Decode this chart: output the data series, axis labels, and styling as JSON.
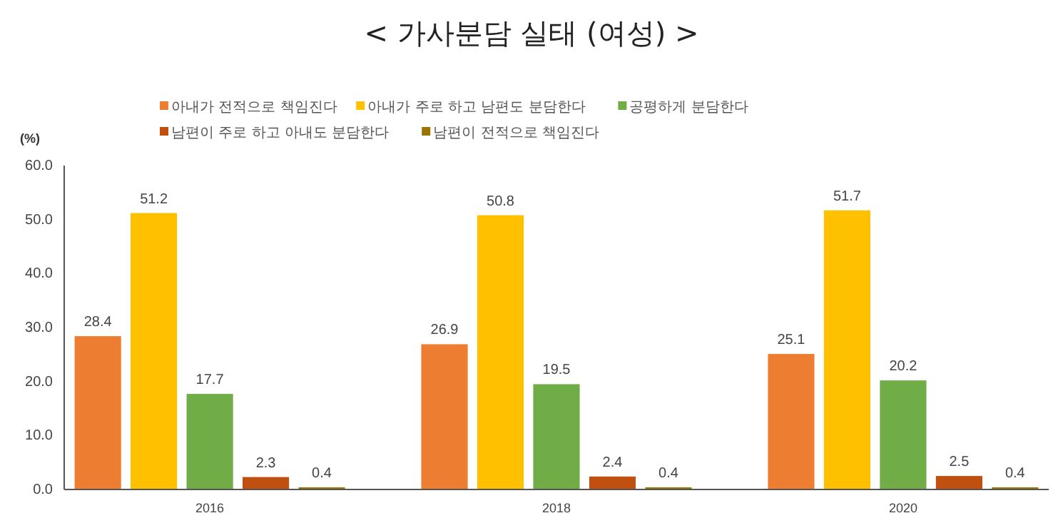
{
  "chart_data": {
    "type": "bar",
    "title": "< 가사분담 실태 (여성) >",
    "ylabel": "(%)",
    "categories": [
      "2016",
      "2018",
      "2020"
    ],
    "series": [
      {
        "name": "아내가 전적으로 책임진다",
        "color": "#ed7d31",
        "values": [
          28.4,
          26.9,
          25.1
        ]
      },
      {
        "name": "아내가 주로 하고 남편도 분담한다",
        "color": "#ffc000",
        "values": [
          51.2,
          50.8,
          51.7
        ]
      },
      {
        "name": "공평하게 분담한다",
        "color": "#70ad47",
        "values": [
          17.7,
          19.5,
          20.2
        ]
      },
      {
        "name": "남편이 주로 하고 아내도 분담한다",
        "color": "#c0500f",
        "values": [
          2.3,
          2.4,
          2.5
        ]
      },
      {
        "name": "남편이 전적으로 책임진다",
        "color": "#9a7400",
        "values": [
          0.4,
          0.4,
          0.4
        ]
      }
    ],
    "ylim": [
      0,
      60
    ],
    "yticks": [
      {
        "value": 0,
        "label": "0.0"
      },
      {
        "value": 10,
        "label": "10.0"
      },
      {
        "value": 20,
        "label": "20.0"
      },
      {
        "value": 30,
        "label": "30.0"
      },
      {
        "value": 40,
        "label": "40.0"
      },
      {
        "value": 50,
        "label": "50.0"
      },
      {
        "value": 60,
        "label": "60.0"
      }
    ],
    "data_labels": true,
    "legend": "top",
    "grid": false
  }
}
